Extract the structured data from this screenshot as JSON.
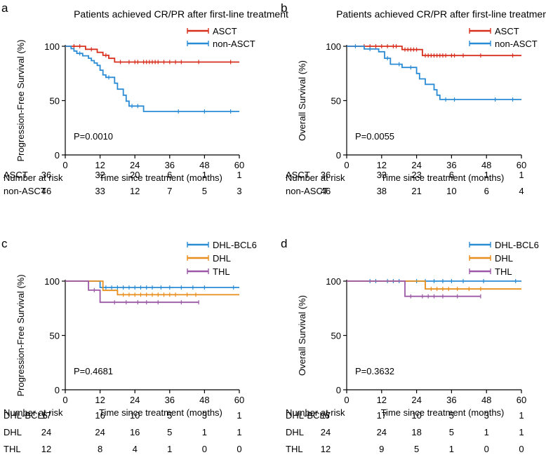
{
  "colors": {
    "red": "#d7301f",
    "blue": "#2b8cd6",
    "orange": "#e88e1b",
    "purple": "#9b59a6",
    "axis": "#000000"
  },
  "chart_data": [
    {
      "type": "line",
      "panel_label": "a",
      "title": "Patients achieved CR/PR after first-line treatment",
      "xlabel": "Time since treatment (months)",
      "ylabel": "Progression-Free Survival (%)",
      "xlim": [
        0,
        60
      ],
      "ylim": [
        0,
        100
      ],
      "xticks": [
        0,
        12,
        24,
        36,
        48,
        60
      ],
      "yticks": [
        0,
        50,
        100
      ],
      "pvalue": "P=0.0010",
      "risk_header": "Number at risk",
      "legend_position": "top-right",
      "series": [
        {
          "name": "ASCT",
          "color": "#d7301f",
          "steps": [
            [
              0,
              100
            ],
            [
              7,
              100
            ],
            [
              7,
              97.2
            ],
            [
              11,
              97.2
            ],
            [
              11,
              94.4
            ],
            [
              13,
              94.4
            ],
            [
              13,
              91.7
            ],
            [
              15,
              91.7
            ],
            [
              15,
              88.9
            ],
            [
              17,
              88.9
            ],
            [
              17,
              85.5
            ],
            [
              60,
              85.5
            ]
          ],
          "censors": [
            3,
            5,
            9,
            14,
            19,
            22,
            24,
            25,
            27,
            28,
            29,
            30,
            31,
            32,
            34,
            36,
            38,
            40,
            46,
            57
          ],
          "risk": [
            36,
            32,
            20,
            6,
            1,
            1
          ]
        },
        {
          "name": "non-ASCT",
          "color": "#2b8cd6",
          "steps": [
            [
              0,
              100
            ],
            [
              2,
              100
            ],
            [
              2,
              97.8
            ],
            [
              3,
              97.8
            ],
            [
              3,
              95.6
            ],
            [
              4,
              95.6
            ],
            [
              4,
              93.4
            ],
            [
              6,
              93.4
            ],
            [
              6,
              91.2
            ],
            [
              8,
              91.2
            ],
            [
              8,
              89
            ],
            [
              9,
              89
            ],
            [
              9,
              86.8
            ],
            [
              10,
              86.8
            ],
            [
              10,
              84.6
            ],
            [
              11,
              84.6
            ],
            [
              11,
              82.4
            ],
            [
              12,
              82.4
            ],
            [
              12,
              78
            ],
            [
              13,
              78
            ],
            [
              13,
              73.6
            ],
            [
              14,
              73.6
            ],
            [
              14,
              71.4
            ],
            [
              17,
              71.4
            ],
            [
              17,
              66
            ],
            [
              18,
              66
            ],
            [
              18,
              60.5
            ],
            [
              20,
              60.5
            ],
            [
              20,
              55
            ],
            [
              21,
              55
            ],
            [
              21,
              49.5
            ],
            [
              22,
              49.5
            ],
            [
              22,
              45
            ],
            [
              27,
              45
            ],
            [
              27,
              40
            ],
            [
              60,
              40
            ]
          ],
          "censors": [
            5,
            15,
            23,
            25,
            39,
            48,
            57
          ],
          "risk": [
            46,
            33,
            12,
            7,
            5,
            3
          ]
        }
      ]
    },
    {
      "type": "line",
      "panel_label": "b",
      "title": "Patients achieved CR/PR after first-line treatment",
      "xlabel": "Time since treatment (months)",
      "ylabel": "Overall Survival (%)",
      "xlim": [
        0,
        60
      ],
      "ylim": [
        0,
        100
      ],
      "xticks": [
        0,
        12,
        24,
        36,
        48,
        60
      ],
      "yticks": [
        0,
        50,
        100
      ],
      "pvalue": "P=0.0055",
      "risk_header": "Number at risk",
      "legend_position": "top-right",
      "series": [
        {
          "name": "ASCT",
          "color": "#d7301f",
          "steps": [
            [
              0,
              100
            ],
            [
              19,
              100
            ],
            [
              19,
              97
            ],
            [
              26,
              97
            ],
            [
              26,
              91.5
            ],
            [
              60,
              91.5
            ]
          ],
          "censors": [
            6,
            8,
            10,
            12,
            14,
            16,
            17,
            20,
            21,
            22,
            23,
            24,
            27,
            28,
            29,
            30,
            31,
            32,
            33,
            34,
            36,
            37,
            40,
            46,
            57
          ],
          "risk": [
            36,
            33,
            23,
            6,
            1,
            1
          ]
        },
        {
          "name": "non-ASCT",
          "color": "#2b8cd6",
          "steps": [
            [
              0,
              100
            ],
            [
              6,
              100
            ],
            [
              6,
              97.5
            ],
            [
              11,
              97.5
            ],
            [
              11,
              95
            ],
            [
              13,
              95
            ],
            [
              13,
              89
            ],
            [
              15,
              89
            ],
            [
              15,
              83.5
            ],
            [
              19,
              83.5
            ],
            [
              19,
              80.5
            ],
            [
              24,
              80.5
            ],
            [
              24,
              75
            ],
            [
              25,
              75
            ],
            [
              25,
              70
            ],
            [
              27,
              70
            ],
            [
              27,
              65
            ],
            [
              30,
              65
            ],
            [
              30,
              60
            ],
            [
              31,
              60
            ],
            [
              31,
              55
            ],
            [
              32,
              55
            ],
            [
              32,
              51
            ],
            [
              60,
              51
            ]
          ],
          "censors": [
            3,
            8,
            14,
            18,
            22,
            34,
            37,
            51,
            57
          ],
          "risk": [
            46,
            38,
            21,
            10,
            6,
            4
          ]
        }
      ]
    },
    {
      "type": "line",
      "panel_label": "c",
      "title": "",
      "xlabel": "Time since treatment (months)",
      "ylabel": "Progression-Free Survival (%)",
      "xlim": [
        0,
        60
      ],
      "ylim": [
        0,
        100
      ],
      "xticks": [
        0,
        12,
        24,
        36,
        48,
        60
      ],
      "yticks": [
        0,
        50,
        100
      ],
      "pvalue": "P=0.4681",
      "risk_header": "Number at risk",
      "legend_position": "top-right",
      "series": [
        {
          "name": "DHL-BCL6",
          "color": "#2b8cd6",
          "steps": [
            [
              0,
              100
            ],
            [
              12,
              100
            ],
            [
              12,
              94.1
            ],
            [
              60,
              94.1
            ]
          ],
          "censors": [
            14,
            16,
            18,
            20,
            22,
            24,
            26,
            28,
            30,
            33,
            36,
            40,
            44,
            48,
            58
          ],
          "risk": [
            17,
            16,
            10,
            5,
            3,
            1
          ]
        },
        {
          "name": "DHL",
          "color": "#e88e1b",
          "steps": [
            [
              0,
              100
            ],
            [
              13,
              100
            ],
            [
              13,
              91.5
            ],
            [
              18,
              91.5
            ],
            [
              18,
              87.5
            ],
            [
              60,
              87.5
            ]
          ],
          "censors": [
            20,
            22,
            24,
            26,
            28,
            30,
            32,
            34,
            36,
            38,
            42,
            45
          ],
          "risk": [
            24,
            24,
            16,
            5,
            1,
            1
          ]
        },
        {
          "name": "THL",
          "color": "#9b59a6",
          "steps": [
            [
              0,
              100
            ],
            [
              8,
              100
            ],
            [
              8,
              91.7
            ],
            [
              12,
              91.7
            ],
            [
              12,
              80.5
            ],
            [
              46,
              80.5
            ]
          ],
          "censors": [
            10,
            17,
            21,
            25,
            28,
            32,
            40,
            46
          ],
          "risk": [
            12,
            8,
            4,
            1,
            0,
            0
          ]
        }
      ]
    },
    {
      "type": "line",
      "panel_label": "d",
      "title": "",
      "xlabel": "Time since treatment (months)",
      "ylabel": "Overall Survival (%)",
      "xlim": [
        0,
        60
      ],
      "ylim": [
        0,
        100
      ],
      "xticks": [
        0,
        12,
        24,
        36,
        48,
        60
      ],
      "yticks": [
        0,
        50,
        100
      ],
      "pvalue": "P=0.3632",
      "risk_header": "Number at risk",
      "legend_position": "top-right",
      "series": [
        {
          "name": "DHL-BCL6",
          "color": "#2b8cd6",
          "steps": [
            [
              0,
              100
            ],
            [
              60,
              100
            ]
          ],
          "censors": [
            8,
            10,
            14,
            16,
            18,
            24,
            27,
            30,
            33,
            36,
            40,
            47,
            58
          ],
          "risk": [
            17,
            17,
            10,
            5,
            3,
            1
          ]
        },
        {
          "name": "DHL",
          "color": "#e88e1b",
          "steps": [
            [
              0,
              100
            ],
            [
              27,
              100
            ],
            [
              27,
              92.8
            ],
            [
              60,
              92.8
            ]
          ],
          "censors": [
            29,
            31,
            33,
            35,
            38,
            42,
            46
          ],
          "risk": [
            24,
            24,
            18,
            5,
            1,
            1
          ]
        },
        {
          "name": "THL",
          "color": "#9b59a6",
          "steps": [
            [
              0,
              100
            ],
            [
              20,
              100
            ],
            [
              20,
              86
            ],
            [
              46,
              86
            ]
          ],
          "censors": [
            22,
            26,
            28,
            30,
            33,
            38,
            46
          ],
          "risk": [
            12,
            9,
            5,
            1,
            0,
            0
          ]
        }
      ]
    }
  ]
}
